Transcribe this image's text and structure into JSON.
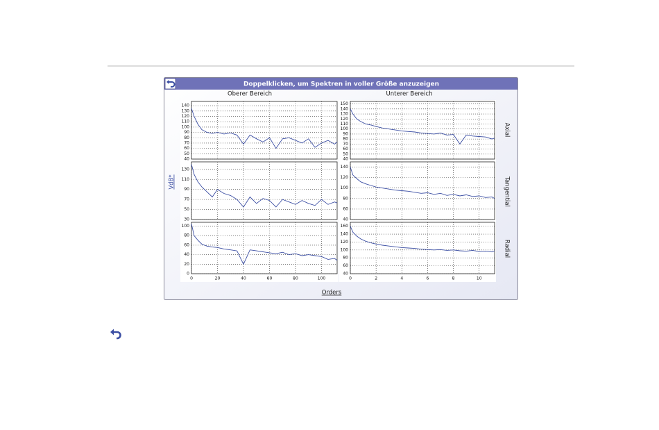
{
  "header": {
    "title": "Doppelklicken, um Spektren in voller Größe anzuzeigen"
  },
  "columns": [
    "Oberer Bereich",
    "Unterer Bereich"
  ],
  "rows": [
    "Axial",
    "Tangential",
    "Radial"
  ],
  "y_label": "VdB*",
  "x_label": "Orders",
  "chart_data": [
    {
      "type": "line",
      "color": "#3b4ea3",
      "grid": true,
      "x": [
        0,
        2,
        5,
        8,
        12,
        16,
        20,
        25,
        30,
        35,
        40,
        45,
        50,
        55,
        60,
        65,
        70,
        75,
        80,
        85,
        90,
        95,
        100,
        105,
        110,
        112
      ],
      "values": [
        135,
        120,
        105,
        95,
        90,
        88,
        90,
        87,
        89,
        85,
        68,
        85,
        78,
        72,
        80,
        60,
        78,
        80,
        75,
        70,
        78,
        62,
        70,
        75,
        68,
        72
      ],
      "xlim": [
        0,
        112
      ],
      "ylim": [
        40,
        148
      ],
      "xticks": [
        0,
        20,
        40,
        60,
        80,
        100
      ],
      "yticks": [
        40,
        50,
        60,
        70,
        80,
        90,
        100,
        110,
        120,
        130,
        140
      ]
    },
    {
      "type": "line",
      "color": "#3b4ea3",
      "grid": true,
      "x": [
        0,
        0.2,
        0.5,
        0.8,
        1.2,
        1.6,
        2,
        2.5,
        3,
        3.5,
        4,
        4.5,
        5,
        5.5,
        6,
        6.5,
        7,
        7.5,
        8,
        8.5,
        9,
        9.5,
        10,
        10.5,
        11,
        11.2
      ],
      "values": [
        140,
        130,
        120,
        115,
        110,
        108,
        105,
        102,
        100,
        98,
        96,
        95,
        94,
        92,
        91,
        90,
        92,
        88,
        89,
        70,
        88,
        86,
        85,
        84,
        80,
        82
      ],
      "xlim": [
        0,
        11.2
      ],
      "ylim": [
        40,
        155
      ],
      "xticks": [
        0,
        2,
        4,
        6,
        8,
        10
      ],
      "yticks": [
        40,
        50,
        60,
        70,
        80,
        90,
        100,
        110,
        120,
        130,
        140,
        150
      ]
    },
    {
      "type": "line",
      "color": "#3b4ea3",
      "grid": true,
      "x": [
        0,
        2,
        5,
        8,
        12,
        16,
        20,
        25,
        30,
        35,
        40,
        45,
        50,
        55,
        60,
        65,
        70,
        75,
        80,
        85,
        90,
        95,
        100,
        105,
        110,
        112
      ],
      "values": [
        140,
        120,
        105,
        95,
        85,
        75,
        90,
        82,
        78,
        70,
        55,
        75,
        62,
        72,
        68,
        55,
        70,
        65,
        60,
        68,
        62,
        58,
        70,
        60,
        65,
        63
      ],
      "xlim": [
        0,
        112
      ],
      "ylim": [
        30,
        145
      ],
      "xticks": [
        0,
        20,
        40,
        60,
        80,
        100
      ],
      "yticks": [
        30,
        50,
        70,
        90,
        110,
        130
      ]
    },
    {
      "type": "line",
      "color": "#3b4ea3",
      "grid": true,
      "x": [
        0,
        0.2,
        0.5,
        0.8,
        1.2,
        1.6,
        2,
        2.5,
        3,
        3.5,
        4,
        4.5,
        5,
        5.5,
        6,
        6.5,
        7,
        7.5,
        8,
        8.5,
        9,
        9.5,
        10,
        10.5,
        11,
        11.2
      ],
      "values": [
        140,
        125,
        118,
        112,
        108,
        105,
        102,
        100,
        98,
        96,
        95,
        94,
        92,
        90,
        91,
        88,
        90,
        86,
        88,
        85,
        87,
        84,
        85,
        82,
        83,
        80
      ],
      "xlim": [
        0,
        11.2
      ],
      "ylim": [
        40,
        150
      ],
      "xticks": [
        0,
        2,
        4,
        6,
        8,
        10
      ],
      "yticks": [
        40,
        60,
        80,
        100,
        120,
        140
      ]
    },
    {
      "type": "line",
      "color": "#3b4ea3",
      "grid": true,
      "x": [
        0,
        2,
        5,
        8,
        12,
        16,
        20,
        25,
        30,
        35,
        40,
        45,
        50,
        55,
        60,
        65,
        70,
        75,
        80,
        85,
        90,
        95,
        100,
        105,
        110,
        112
      ],
      "values": [
        105,
        80,
        70,
        62,
        58,
        56,
        55,
        52,
        50,
        48,
        20,
        50,
        48,
        46,
        44,
        42,
        45,
        40,
        42,
        38,
        40,
        38,
        36,
        30,
        32,
        28
      ],
      "xlim": [
        0,
        112
      ],
      "ylim": [
        0,
        108
      ],
      "xticks": [
        0,
        20,
        40,
        60,
        80,
        100
      ],
      "yticks": [
        0,
        20,
        40,
        60,
        80,
        100
      ]
    },
    {
      "type": "line",
      "color": "#3b4ea3",
      "grid": true,
      "x": [
        0,
        0.2,
        0.5,
        0.8,
        1.2,
        1.6,
        2,
        2.5,
        3,
        3.5,
        4,
        4.5,
        5,
        5.5,
        6,
        6.5,
        7,
        7.5,
        8,
        8.5,
        9,
        9.5,
        10,
        10.5,
        11,
        11.2
      ],
      "values": [
        160,
        145,
        135,
        128,
        122,
        118,
        115,
        112,
        110,
        108,
        106,
        105,
        104,
        102,
        101,
        100,
        101,
        99,
        100,
        98,
        97,
        99,
        96,
        97,
        95,
        98
      ],
      "xlim": [
        0,
        11.2
      ],
      "ylim": [
        40,
        170
      ],
      "xticks": [
        0,
        2,
        4,
        6,
        8,
        10
      ],
      "yticks": [
        40,
        60,
        80,
        100,
        120,
        140,
        160
      ]
    }
  ]
}
